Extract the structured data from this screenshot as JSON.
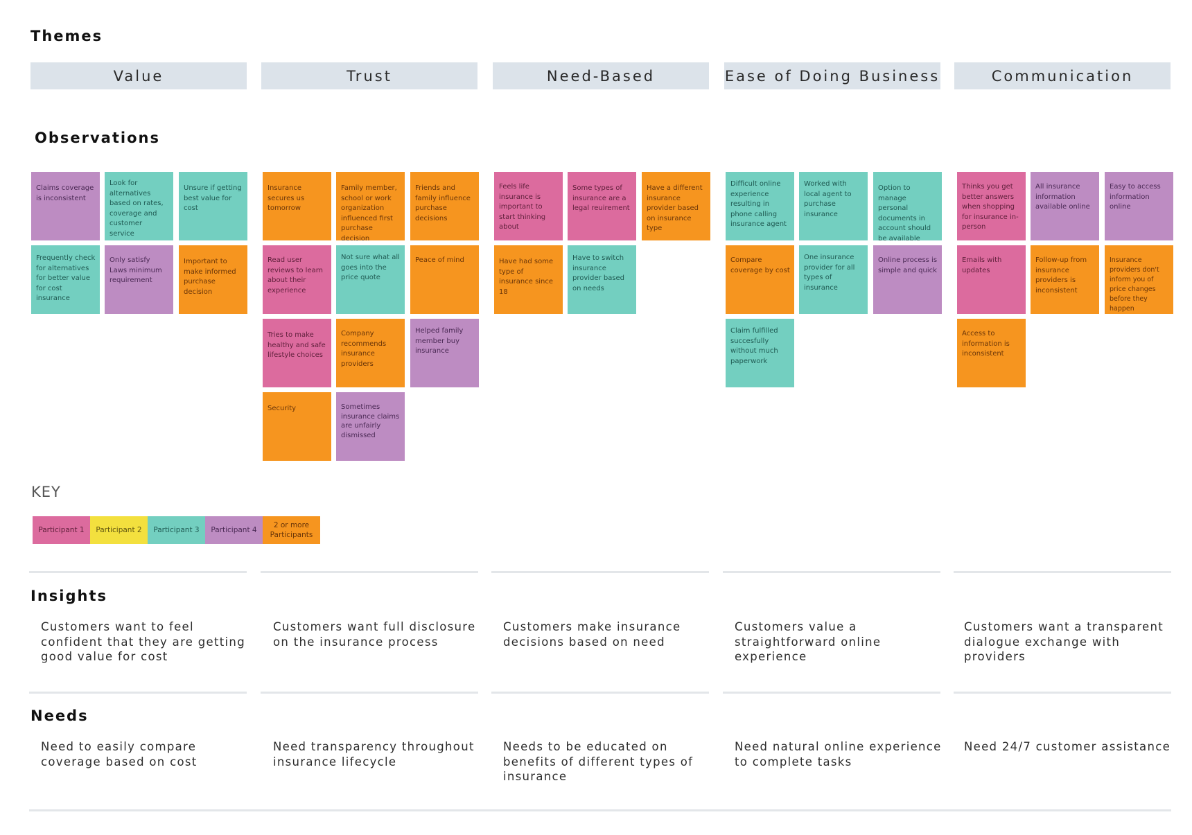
{
  "headings": {
    "themes": "Themes",
    "observations": "Observations",
    "key": "KEY",
    "insights": "Insights",
    "needs": "Needs"
  },
  "themes": [
    "Value",
    "Trust",
    "Need-Based",
    "Ease of Doing Business",
    "Communication"
  ],
  "observations": {
    "value": [
      "Claims coverage is inconsistent",
      "Look for alternatives based on rates, coverage and customer service",
      "Unsure if getting best value for cost",
      "Frequently check for alternatives for better value for cost insurance",
      "Only satisfy Laws minimum requirement",
      "Important to make informed purchase decision"
    ],
    "trust": [
      "Insurance secures us tomorrow",
      "Family member, school or work organization influenced first purchase decision",
      "Friends and family influence purchase decisions",
      "Read user reviews to learn about their experience",
      "Not sure what all goes into the price quote",
      "Peace of mind",
      "Tries to make healthy and safe lifestyle choices",
      "Company recommends insurance providers",
      "Helped family member buy insurance",
      "Security",
      "Sometimes insurance claims are unfairly dismissed"
    ],
    "need_based": [
      "Feels life insurance is important to start thinking about",
      "Some types of insurance are a legal reuirement",
      "Have a different insurance provider based on insurance type",
      "Have had some type of insurance since 18",
      "Have to switch insurance provider based on needs"
    ],
    "ease": [
      "Difficult online experience resulting in phone calling insurance agent",
      "Worked with local agent to purchase insurance",
      "Option to manage personal documents in account should be available",
      "Compare coverage by cost",
      "One insurance provider for all types of insurance",
      "Online process is simple and quick",
      "Claim fulfilled succesfully without much paperwork"
    ],
    "communication": [
      "Thinks you get better answers when shopping for insurance in-person",
      "All insurance information available online",
      "Easy to access information online",
      "Emails with updates",
      "Follow-up from insurance providers is inconsistent",
      "Insurance providers don't inform you of price changes before they happen",
      "Access to information is inconsistent"
    ]
  },
  "key": [
    "Participant 1",
    "Participant 2",
    "Participant 3",
    "Participant 4",
    "2 or more Participants"
  ],
  "colors": {
    "participant_1": "#dc6b9e",
    "participant_2": "#f3e03e",
    "participant_3": "#73cfc0",
    "participant_4": "#bd8cc2",
    "multiple_participants": "#f6951f",
    "theme_header": "#dce3ea"
  },
  "insights": [
    "Customers want to feel confident that they are getting good value for cost",
    "Customers want full disclosure on the insurance process",
    "Customers make insurance decisions based on need",
    "Customers value a straightforward online experience",
    "Customers want a transparent dialogue exchange with providers"
  ],
  "needs": [
    "Need to easily compare coverage based on cost",
    "Need transparency throughout insurance lifecycle",
    "Needs to be educated on benefits of different types of insurance",
    "Need natural online experience to complete tasks",
    "Need 24/7 customer assistance"
  ]
}
